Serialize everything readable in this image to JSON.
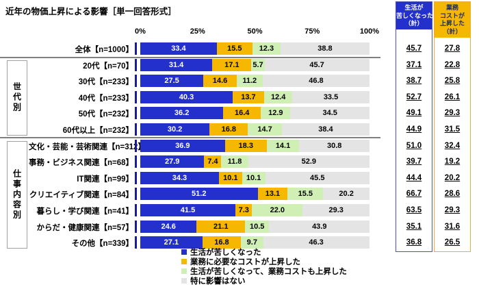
{
  "title": "近年の物価上昇による影響［単一回答形式］",
  "chart_data": {
    "type": "bar",
    "orientation": "horizontal",
    "stacked": true,
    "title": "近年の物価上昇による影響［単一回答形式］",
    "xlim": [
      0,
      100
    ],
    "x_ticks": [
      "0%",
      "25%",
      "50%",
      "75%",
      "100%"
    ],
    "grid": false,
    "legend_position": "bottom",
    "categories": [
      "全体【n=1000】",
      "20代【n=70】",
      "30代【n=233】",
      "40代【n=233】",
      "50代【n=232】",
      "60代以上【n=232】",
      "文化・芸能・芸術関連【n=312】",
      "事務・ビジネス関連【n=68】",
      "IT関連【n=99】",
      "クリエイティブ関連【n=84】",
      "暮らし・学び関連【n=41】",
      "からだ・健康関連【n=57】",
      "その他【n=339】"
    ],
    "groups": [
      {
        "label": "世代別",
        "from": 1,
        "to": 5
      },
      {
        "label": "仕事内容別",
        "from": 6,
        "to": 12
      }
    ],
    "series": [
      {
        "name": "生活が苦しくなった",
        "color": "#2330CC",
        "text_color": "#ffffff",
        "values": [
          33.4,
          31.4,
          27.5,
          40.3,
          36.2,
          30.2,
          36.9,
          27.9,
          34.3,
          51.2,
          41.5,
          24.6,
          27.1
        ]
      },
      {
        "name": "業務に必要なコストが上昇した",
        "color": "#F5B700",
        "text_color": "#000000",
        "values": [
          15.5,
          17.1,
          14.6,
          13.7,
          16.4,
          16.8,
          18.3,
          7.4,
          10.1,
          13.1,
          7.3,
          21.1,
          16.8
        ]
      },
      {
        "name": "生活が苦しくなって、業務コストも上昇した",
        "color": "#CFEFB4",
        "text_color": "#000000",
        "values": [
          12.3,
          5.7,
          11.2,
          12.4,
          12.9,
          14.7,
          14.1,
          11.8,
          10.1,
          15.5,
          22.0,
          10.5,
          9.7
        ]
      },
      {
        "name": "特に影響はない",
        "color": "#E4E4E4",
        "text_color": "#000000",
        "values": [
          38.8,
          45.7,
          46.8,
          33.5,
          34.5,
          38.4,
          30.8,
          52.9,
          45.5,
          20.2,
          29.3,
          43.9,
          46.3
        ]
      }
    ],
    "summary_columns": [
      {
        "header_lines": [
          "生活が",
          "苦しくなった",
          "（計）"
        ],
        "header_bg": "#2330CC",
        "header_color": "#ffffff",
        "border_color": "#4A55A8",
        "values": [
          45.7,
          37.1,
          38.7,
          52.7,
          49.1,
          44.9,
          51.0,
          39.7,
          44.4,
          66.7,
          63.5,
          35.1,
          36.8
        ]
      },
      {
        "header_lines": [
          "業務",
          "コストが",
          "上昇した",
          "（計）"
        ],
        "header_bg": "#F5B700",
        "header_color": "#1A2970",
        "border_color": "#F0A840",
        "values": [
          27.8,
          22.8,
          25.8,
          26.1,
          29.3,
          31.5,
          32.4,
          19.2,
          20.2,
          28.6,
          29.3,
          31.6,
          26.5
        ]
      }
    ]
  }
}
